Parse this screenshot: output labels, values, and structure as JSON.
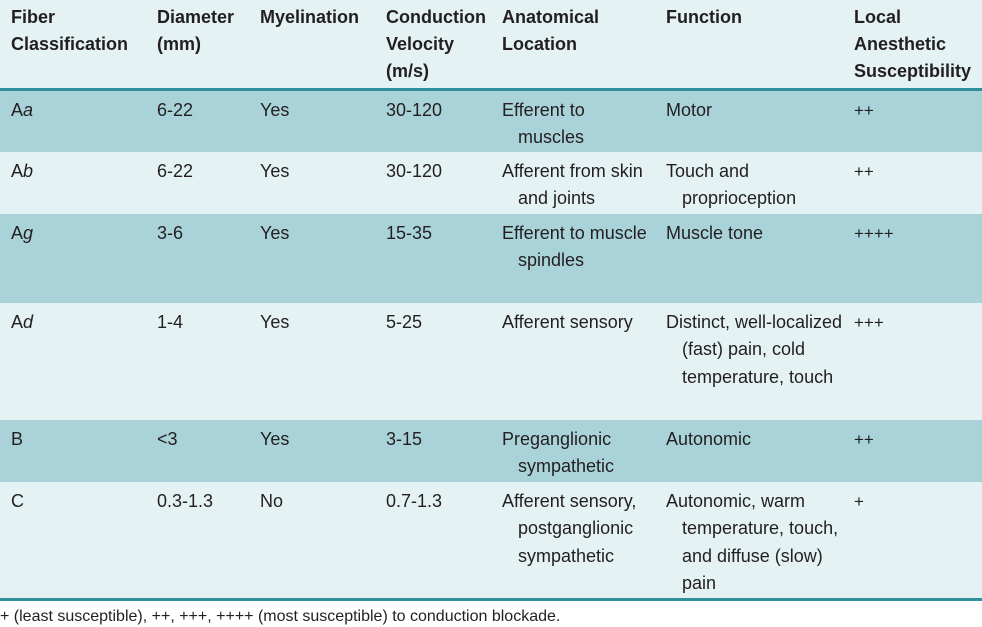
{
  "table": {
    "headers": [
      "Fiber\nClassification",
      "Diameter\n(mm)",
      "Myelination",
      "Conduction\nVelocity\n(m/s)",
      "Anatomical\nLocation",
      "Function",
      "Local\nAnesthetic\nSusceptibility"
    ],
    "rows": [
      {
        "fiber_prefix": "A",
        "fiber_greek": "a",
        "diameter": "6-22",
        "myelination": "Yes",
        "velocity": "30-120",
        "location": "Efferent to muscles",
        "function": "Motor",
        "susceptibility": "++"
      },
      {
        "fiber_prefix": "A",
        "fiber_greek": "b",
        "diameter": "6-22",
        "myelination": "Yes",
        "velocity": "30-120",
        "location": "Afferent from skin and joints",
        "function": "Touch and proprioception",
        "susceptibility": "++"
      },
      {
        "fiber_prefix": "A",
        "fiber_greek": "g",
        "diameter": "3-6",
        "myelination": "Yes",
        "velocity": "15-35",
        "location": "Efferent to muscle spindles",
        "function": "Muscle tone",
        "susceptibility": "++++"
      },
      {
        "fiber_prefix": "A",
        "fiber_greek": "d",
        "diameter": "1-4",
        "myelination": "Yes",
        "velocity": "5-25",
        "location": "Afferent sensory",
        "function": "Distinct, well-localized (fast) pain, cold temperature, touch",
        "susceptibility": "+++"
      },
      {
        "fiber_prefix": "B",
        "fiber_greek": "",
        "diameter": "<3",
        "myelination": "Yes",
        "velocity": "3-15",
        "location": "Preganglionic sympathetic",
        "function": "Autonomic",
        "susceptibility": "++"
      },
      {
        "fiber_prefix": "C",
        "fiber_greek": "",
        "diameter": "0.3-1.3",
        "myelination": "No",
        "velocity": "0.7-1.3",
        "location": "Afferent sensory, postganglionic sympathetic",
        "function": "Autonomic, warm temperature, touch, and diffuse (slow) pain",
        "susceptibility": "+"
      }
    ]
  },
  "footnote": "+ (least susceptible), ++, +++, ++++ (most susceptible) to conduction blockade.",
  "colors": {
    "header_bg": "#e4f2f3",
    "row_dark": "#a9d3d9",
    "row_light": "#e4f2f3",
    "rule": "#2f8f9c"
  }
}
